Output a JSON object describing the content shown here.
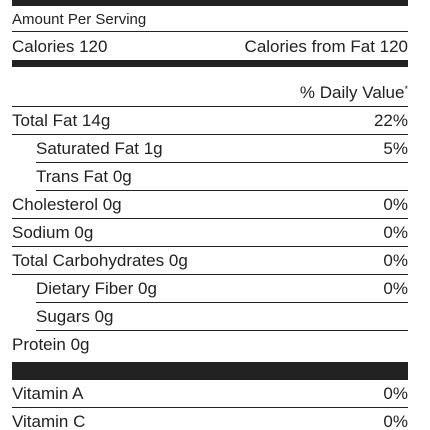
{
  "header": {
    "amount_label": "Amount Per Serving",
    "calories": "Calories 120",
    "calories_from_fat": "Calories from Fat 120",
    "daily_value_label": "% Daily Value",
    "daily_value_mark": "*"
  },
  "nutrients": [
    {
      "label": "Total Fat 14g",
      "daily_value": "22%"
    },
    {
      "label": "Saturated Fat 1g",
      "daily_value": "5%",
      "indent": true
    },
    {
      "label": "Trans Fat 0g",
      "indent": true
    },
    {
      "label": "Cholesterol 0g",
      "daily_value": "0%"
    },
    {
      "label": "Sodium 0g",
      "daily_value": "0%"
    },
    {
      "label": "Total Carbohydrates 0g",
      "daily_value": "0%"
    },
    {
      "label": "Dietary Fiber 0g",
      "daily_value": "0%",
      "indent": true
    },
    {
      "label": "Sugars 0g",
      "indent": true
    },
    {
      "label": "Protein 0g"
    }
  ],
  "vitamins": [
    {
      "label": "Vitamin A",
      "daily_value": "0%"
    },
    {
      "label": "Vitamin C",
      "daily_value": "0%"
    }
  ]
}
